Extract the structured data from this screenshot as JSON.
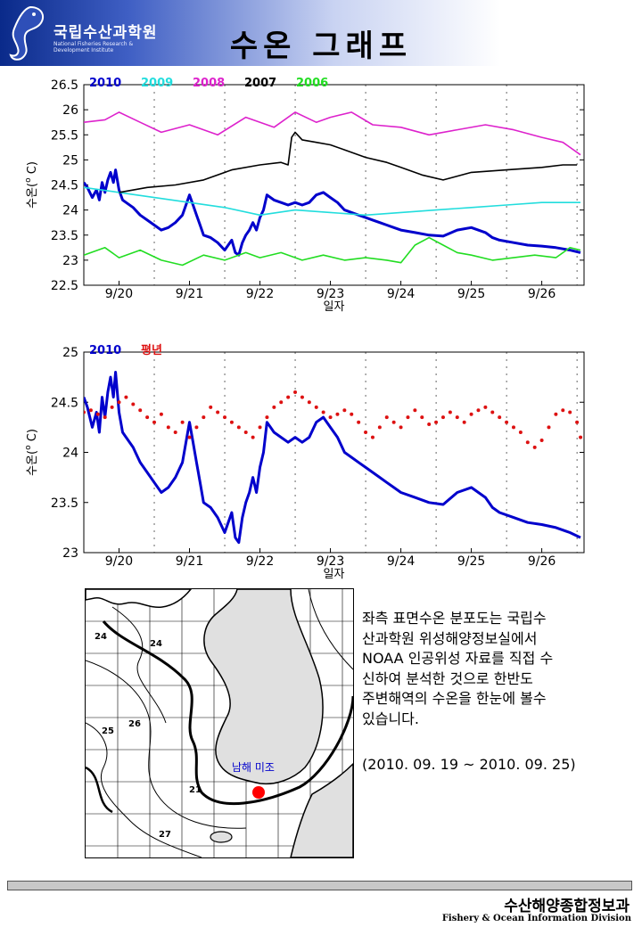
{
  "header": {
    "logo_name": "국립수산과학원",
    "logo_subtitle": "National Fisheries Research & Development Institute",
    "title": "수온 그래프"
  },
  "chart_data": [
    {
      "type": "line",
      "ylabel": "수온(°C)",
      "ylabel_main": "수온(",
      "ylabel_sup": "o",
      "ylabel_tail": " C)",
      "xlabel": "일자",
      "ylim": [
        22.5,
        26.5
      ],
      "yticks": [
        "22.5",
        "23",
        "23.5",
        "24",
        "24.5",
        "25",
        "25.5",
        "26",
        "26.5"
      ],
      "xlim": [
        19.5,
        26.6
      ],
      "x_tick_labels": [
        "9/20",
        "9/21",
        "9/22",
        "9/23",
        "9/24",
        "9/25",
        "9/26"
      ],
      "series": [
        {
          "name": "2010",
          "color": "#0000cc",
          "width": 3,
          "x": [
            19.5,
            19.55,
            19.62,
            19.68,
            19.72,
            19.76,
            19.8,
            19.84,
            19.88,
            19.92,
            19.95,
            20.0,
            20.05,
            20.1,
            20.2,
            20.3,
            20.4,
            20.5,
            20.6,
            20.7,
            20.8,
            20.9,
            21.0,
            21.05,
            21.1,
            21.15,
            21.2,
            21.3,
            21.4,
            21.5,
            21.6,
            21.65,
            21.7,
            21.75,
            21.8,
            21.85,
            21.9,
            21.95,
            22.0,
            22.05,
            22.1,
            22.15,
            22.2,
            22.3,
            22.4,
            22.5,
            22.6,
            22.7,
            22.8,
            22.9,
            23.0,
            23.1,
            23.2,
            23.3,
            23.4,
            23.5,
            23.6,
            23.7,
            23.8,
            23.9,
            24.0,
            24.2,
            24.4,
            24.6,
            24.8,
            25.0,
            25.2,
            25.3,
            25.4,
            25.6,
            25.8,
            26.0,
            26.2,
            26.4,
            26.55
          ],
          "values": [
            24.55,
            24.45,
            24.25,
            24.4,
            24.2,
            24.55,
            24.35,
            24.6,
            24.75,
            24.55,
            24.8,
            24.4,
            24.2,
            24.15,
            24.05,
            23.9,
            23.8,
            23.7,
            23.6,
            23.65,
            23.75,
            23.9,
            24.3,
            24.1,
            23.9,
            23.7,
            23.5,
            23.45,
            23.35,
            23.2,
            23.4,
            23.15,
            23.1,
            23.35,
            23.5,
            23.6,
            23.75,
            23.6,
            23.85,
            24.0,
            24.3,
            24.25,
            24.2,
            24.15,
            24.1,
            24.15,
            24.1,
            24.15,
            24.3,
            24.35,
            24.25,
            24.15,
            24.0,
            23.95,
            23.9,
            23.85,
            23.8,
            23.75,
            23.7,
            23.65,
            23.6,
            23.55,
            23.5,
            23.48,
            23.6,
            23.65,
            23.55,
            23.45,
            23.4,
            23.35,
            23.3,
            23.28,
            23.25,
            23.2,
            23.15
          ]
        },
        {
          "name": "2009",
          "color": "#22dddd",
          "width": 1.6,
          "x": [
            19.5,
            20.0,
            20.5,
            21.0,
            21.5,
            22.0,
            22.5,
            23.0,
            23.5,
            24.0,
            24.5,
            25.0,
            25.5,
            26.0,
            26.55
          ],
          "values": [
            24.45,
            24.35,
            24.25,
            24.15,
            24.05,
            23.9,
            24.0,
            23.95,
            23.9,
            23.95,
            24.0,
            24.05,
            24.1,
            24.15,
            24.15
          ]
        },
        {
          "name": "2008",
          "color": "#dd22cc",
          "width": 1.6,
          "x": [
            19.5,
            19.8,
            20.0,
            20.3,
            20.6,
            21.0,
            21.4,
            21.8,
            22.2,
            22.5,
            22.8,
            23.0,
            23.3,
            23.6,
            24.0,
            24.4,
            24.8,
            25.2,
            25.6,
            26.0,
            26.3,
            26.55
          ],
          "values": [
            25.75,
            25.8,
            25.95,
            25.75,
            25.55,
            25.7,
            25.5,
            25.85,
            25.65,
            25.95,
            25.75,
            25.85,
            25.95,
            25.7,
            25.65,
            25.5,
            25.6,
            25.7,
            25.6,
            25.45,
            25.35,
            25.1
          ]
        },
        {
          "name": "2007",
          "color": "#000000",
          "width": 1.6,
          "x": [
            20.0,
            20.4,
            20.8,
            21.2,
            21.6,
            22.0,
            22.3,
            22.4,
            22.45,
            22.5,
            22.6,
            22.8,
            23.0,
            23.2,
            23.5,
            23.8,
            24.0,
            24.3,
            24.6,
            25.0,
            25.5,
            26.0,
            26.3,
            26.5
          ],
          "values": [
            24.35,
            24.45,
            24.5,
            24.6,
            24.8,
            24.9,
            24.95,
            24.9,
            25.45,
            25.55,
            25.4,
            25.35,
            25.3,
            25.2,
            25.05,
            24.95,
            24.85,
            24.7,
            24.6,
            24.75,
            24.8,
            24.85,
            24.9,
            24.9
          ]
        },
        {
          "name": "2006",
          "color": "#22dd22",
          "width": 1.6,
          "x": [
            19.5,
            19.8,
            20.0,
            20.3,
            20.6,
            20.9,
            21.2,
            21.5,
            21.8,
            22.0,
            22.3,
            22.6,
            22.9,
            23.2,
            23.5,
            23.8,
            24.0,
            24.2,
            24.4,
            24.6,
            24.8,
            25.0,
            25.3,
            25.6,
            25.9,
            26.2,
            26.4,
            26.55
          ],
          "values": [
            23.1,
            23.25,
            23.05,
            23.2,
            23.0,
            22.9,
            23.1,
            23.0,
            23.15,
            23.05,
            23.15,
            23.0,
            23.1,
            23.0,
            23.05,
            23.0,
            22.95,
            23.3,
            23.45,
            23.3,
            23.15,
            23.1,
            23.0,
            23.05,
            23.1,
            23.05,
            23.25,
            23.2
          ]
        }
      ]
    },
    {
      "type": "line",
      "ylabel": "수온(°C)",
      "ylabel_main": "수온(",
      "ylabel_sup": "o",
      "ylabel_tail": " C)",
      "xlabel": "일자",
      "ylim": [
        23,
        25
      ],
      "yticks": [
        "23",
        "23.5",
        "24",
        "24.5",
        "25"
      ],
      "xlim": [
        19.5,
        26.6
      ],
      "x_tick_labels": [
        "9/20",
        "9/21",
        "9/22",
        "9/23",
        "9/24",
        "9/25",
        "9/26"
      ],
      "series": [
        {
          "name": "2010",
          "color": "#0000cc",
          "width": 3,
          "x": [
            19.5,
            19.55,
            19.62,
            19.68,
            19.72,
            19.76,
            19.8,
            19.84,
            19.88,
            19.92,
            19.95,
            20.0,
            20.05,
            20.1,
            20.2,
            20.3,
            20.4,
            20.5,
            20.6,
            20.7,
            20.8,
            20.9,
            21.0,
            21.05,
            21.1,
            21.15,
            21.2,
            21.3,
            21.4,
            21.5,
            21.6,
            21.65,
            21.7,
            21.75,
            21.8,
            21.85,
            21.9,
            21.95,
            22.0,
            22.05,
            22.1,
            22.15,
            22.2,
            22.3,
            22.4,
            22.5,
            22.6,
            22.7,
            22.8,
            22.9,
            23.0,
            23.1,
            23.2,
            23.3,
            23.4,
            23.5,
            23.6,
            23.7,
            23.8,
            23.9,
            24.0,
            24.2,
            24.4,
            24.6,
            24.8,
            25.0,
            25.2,
            25.3,
            25.4,
            25.6,
            25.8,
            26.0,
            26.2,
            26.4,
            26.55
          ],
          "values": [
            24.55,
            24.45,
            24.25,
            24.4,
            24.2,
            24.55,
            24.35,
            24.6,
            24.75,
            24.55,
            24.8,
            24.4,
            24.2,
            24.15,
            24.05,
            23.9,
            23.8,
            23.7,
            23.6,
            23.65,
            23.75,
            23.9,
            24.3,
            24.1,
            23.9,
            23.7,
            23.5,
            23.45,
            23.35,
            23.2,
            23.4,
            23.15,
            23.1,
            23.35,
            23.5,
            23.6,
            23.75,
            23.6,
            23.85,
            24.0,
            24.3,
            24.25,
            24.2,
            24.15,
            24.1,
            24.15,
            24.1,
            24.15,
            24.3,
            24.35,
            24.25,
            24.15,
            24.0,
            23.95,
            23.9,
            23.85,
            23.8,
            23.75,
            23.7,
            23.65,
            23.6,
            23.55,
            23.5,
            23.48,
            23.6,
            23.65,
            23.55,
            23.45,
            23.4,
            23.35,
            23.3,
            23.28,
            23.25,
            23.2,
            23.15
          ]
        },
        {
          "name": "평년",
          "color": "#dd1111",
          "width": 1,
          "style": "dots",
          "x": [
            19.5,
            19.6,
            19.7,
            19.8,
            19.9,
            20.0,
            20.1,
            20.2,
            20.3,
            20.4,
            20.5,
            20.6,
            20.7,
            20.8,
            20.9,
            21.0,
            21.1,
            21.2,
            21.3,
            21.4,
            21.5,
            21.6,
            21.7,
            21.8,
            21.9,
            22.0,
            22.1,
            22.2,
            22.3,
            22.4,
            22.5,
            22.6,
            22.7,
            22.8,
            22.9,
            23.0,
            23.1,
            23.2,
            23.3,
            23.4,
            23.5,
            23.6,
            23.7,
            23.8,
            23.9,
            24.0,
            24.1,
            24.2,
            24.3,
            24.4,
            24.5,
            24.6,
            24.7,
            24.8,
            24.9,
            25.0,
            25.1,
            25.2,
            25.3,
            25.4,
            25.5,
            25.6,
            25.7,
            25.8,
            25.9,
            26.0,
            26.1,
            26.2,
            26.3,
            26.4,
            26.5,
            26.55
          ],
          "values": [
            24.4,
            24.42,
            24.38,
            24.35,
            24.45,
            24.5,
            24.55,
            24.48,
            24.42,
            24.35,
            24.3,
            24.38,
            24.25,
            24.2,
            24.3,
            24.15,
            24.25,
            24.35,
            24.45,
            24.4,
            24.35,
            24.3,
            24.25,
            24.2,
            24.15,
            24.25,
            24.35,
            24.45,
            24.5,
            24.55,
            24.6,
            24.55,
            24.5,
            24.45,
            24.4,
            24.35,
            24.38,
            24.42,
            24.38,
            24.3,
            24.2,
            24.15,
            24.25,
            24.35,
            24.3,
            24.25,
            24.35,
            24.42,
            24.35,
            24.28,
            24.3,
            24.35,
            24.4,
            24.35,
            24.3,
            24.38,
            24.42,
            24.45,
            24.4,
            24.35,
            24.3,
            24.25,
            24.2,
            24.1,
            24.05,
            24.12,
            24.25,
            24.38,
            24.42,
            24.4,
            24.3,
            24.15
          ]
        }
      ]
    }
  ],
  "map": {
    "labels": [
      "24",
      "24",
      "25",
      "26",
      "21",
      "27"
    ],
    "location_label": "남해 미조",
    "marker_color": "#ff0000"
  },
  "description": {
    "lines": [
      "좌측 표면수온 분포도는 국립수",
      "산과학원 위성해양정보실에서",
      "NOAA 인공위성 자료를 직접 수",
      "신하여 분석한 것으로  한반도",
      "주변해역의 수온을 한눈에 볼수",
      "있습니다."
    ],
    "period": "(2010. 09. 19 ~ 2010. 09. 25)"
  },
  "footer": {
    "org_ko": "수산해양종합정보과",
    "org_en": "Fishery & Ocean Information Division"
  }
}
